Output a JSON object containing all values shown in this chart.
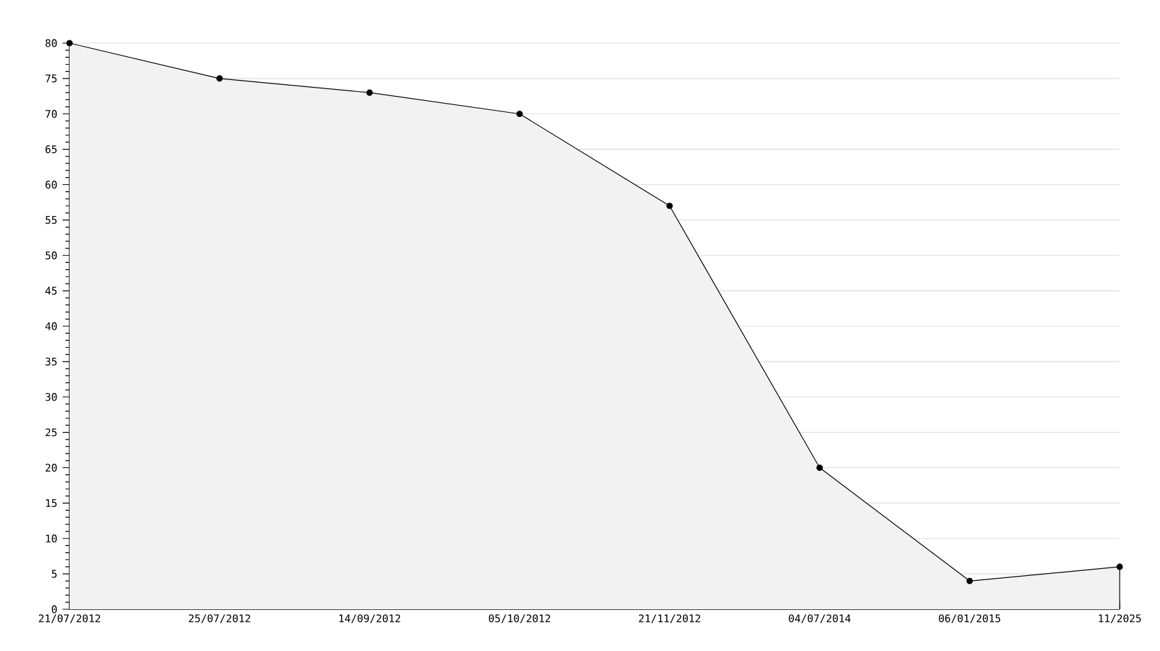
{
  "chart_data": {
    "type": "area",
    "categories": [
      "21/07/2012",
      "25/07/2012",
      "14/09/2012",
      "05/10/2012",
      "21/11/2012",
      "04/07/2014",
      "06/01/2015",
      "11/2025"
    ],
    "series": [
      {
        "color": "#000000",
        "values": [
          80,
          75,
          73,
          70,
          57,
          20,
          4,
          6
        ]
      }
    ],
    "ylim": [
      0,
      80
    ],
    "yticks": [
      0,
      5,
      10,
      15,
      20,
      25,
      30,
      35,
      40,
      45,
      50,
      55,
      60,
      65,
      70,
      75,
      80
    ],
    "grid": "y",
    "marker": "circle",
    "line_style": "solid"
  }
}
